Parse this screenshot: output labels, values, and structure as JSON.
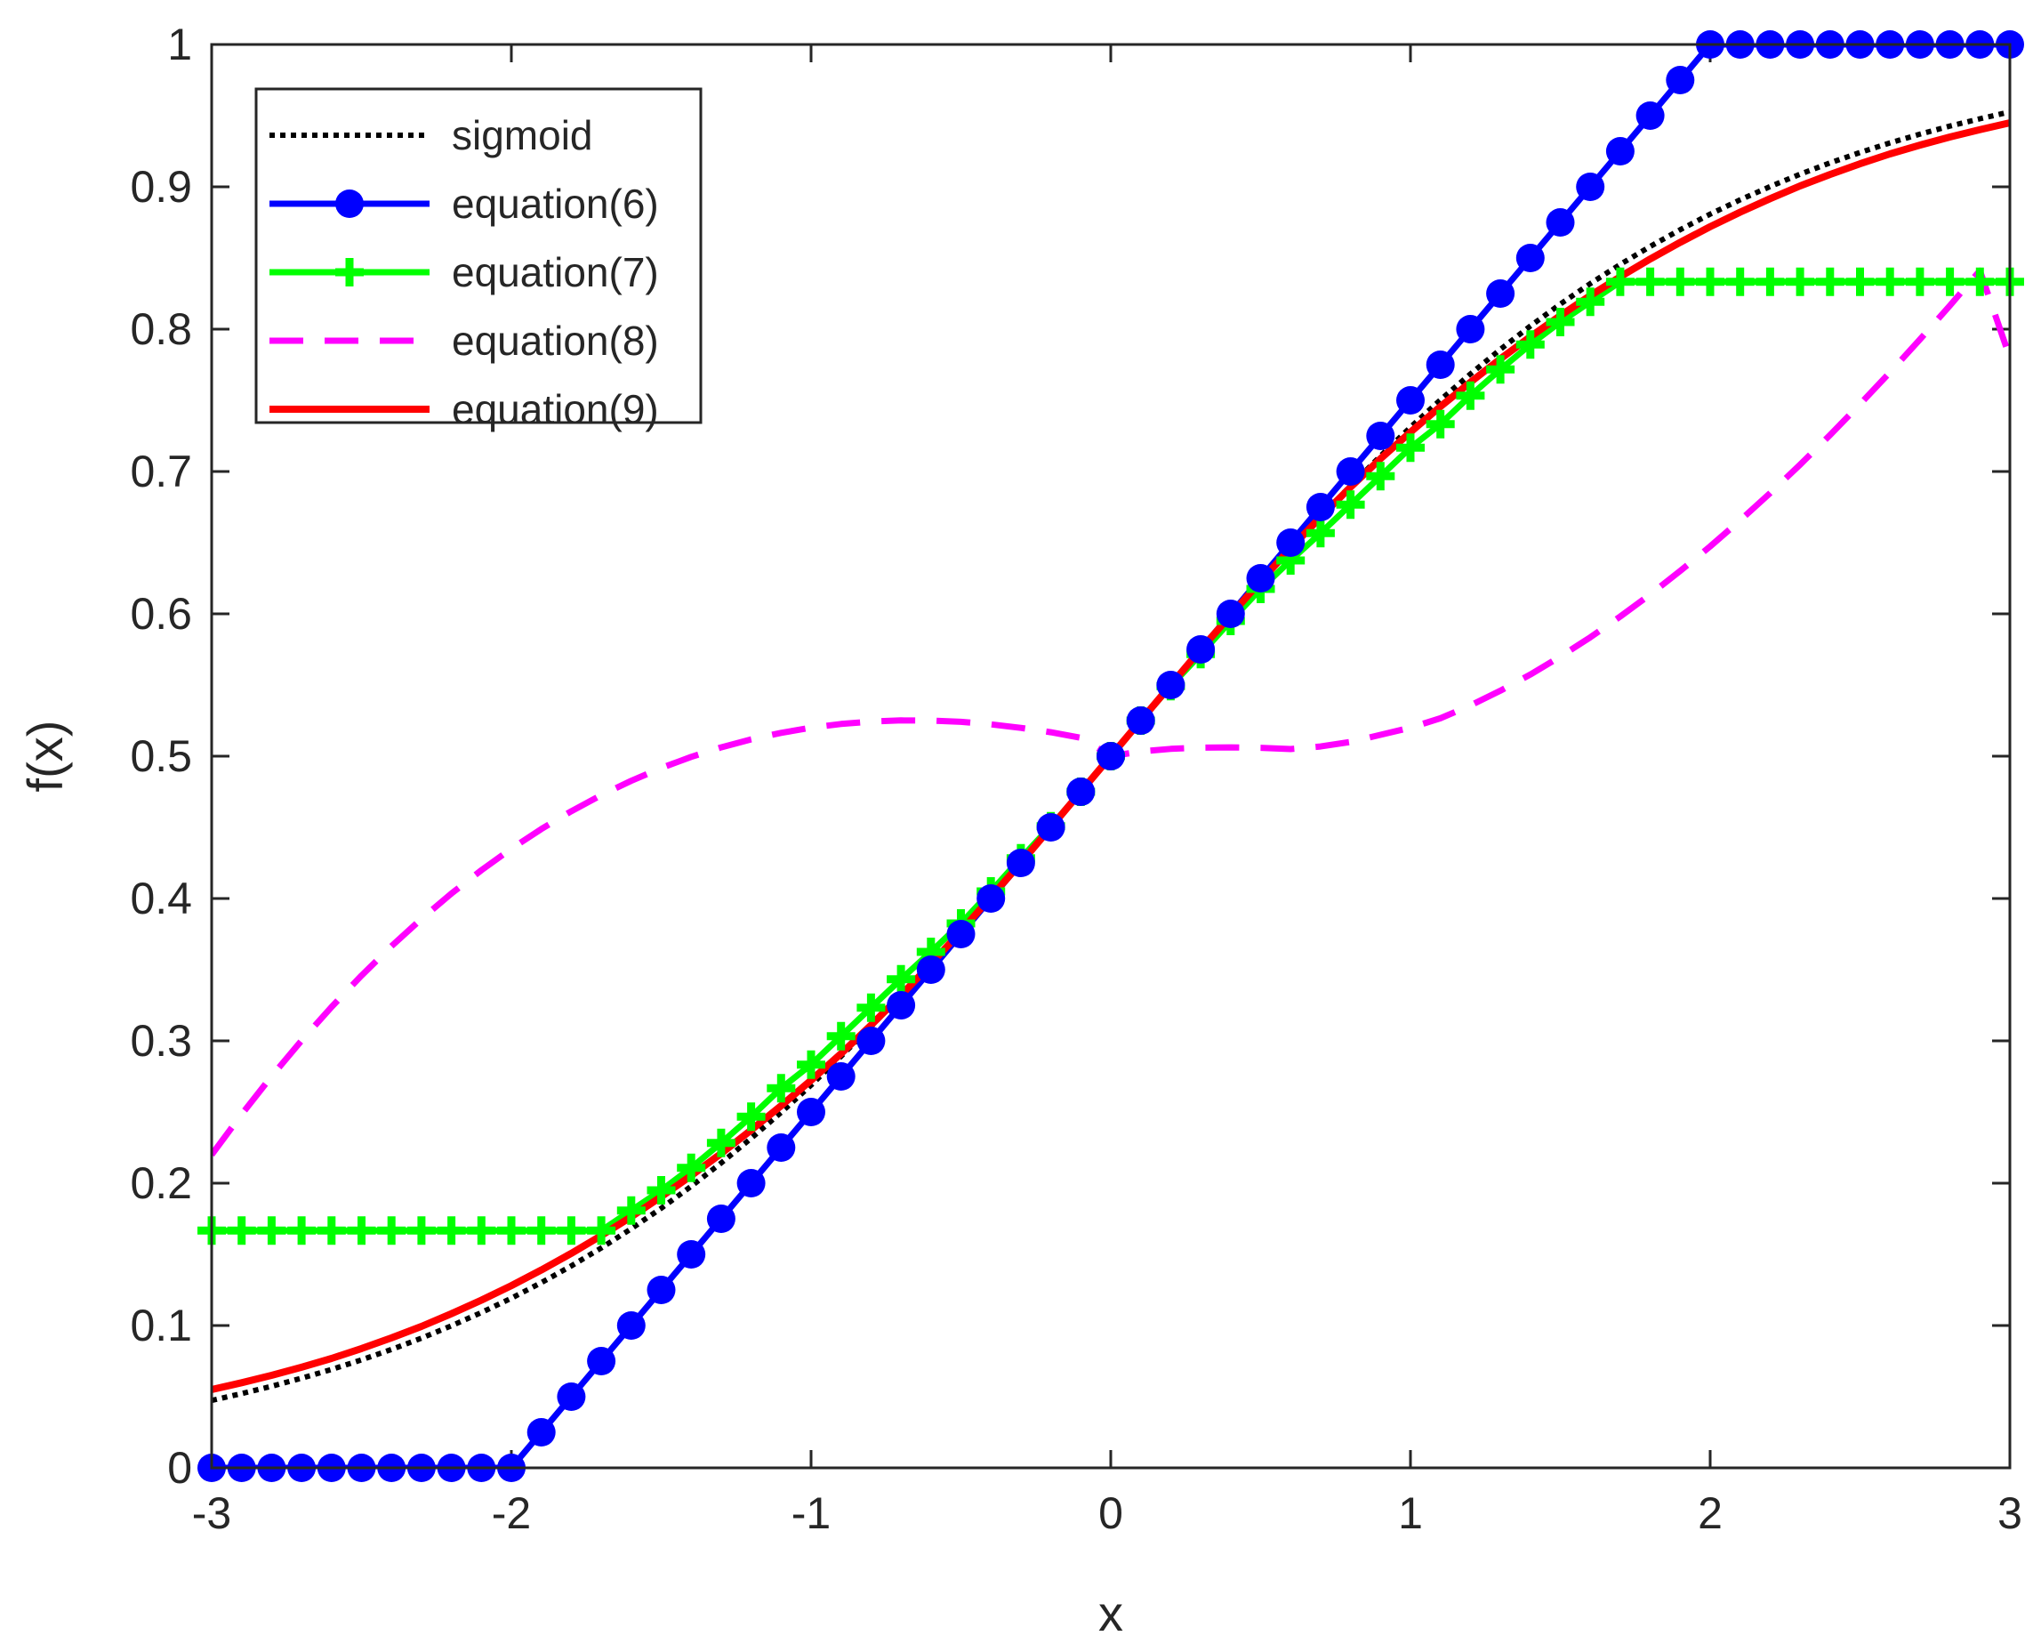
{
  "chart_data": {
    "type": "line",
    "title": "",
    "xlabel": "x",
    "ylabel": "f(x)",
    "xlim": [
      -3,
      3
    ],
    "ylim": [
      0,
      1
    ],
    "xticks": [
      -3,
      -2,
      -1,
      0,
      1,
      2,
      3
    ],
    "xtick_labels": [
      "-3",
      "-2",
      "-1",
      "0",
      "1",
      "2",
      "3"
    ],
    "yticks": [
      0,
      0.1,
      0.2,
      0.3,
      0.4,
      0.5,
      0.6,
      0.7,
      0.8,
      0.9,
      1
    ],
    "ytick_labels": [
      "0",
      "0.1",
      "0.2",
      "0.3",
      "0.4",
      "0.5",
      "0.6",
      "0.7",
      "0.8",
      "0.9",
      "1"
    ],
    "grid": false,
    "legend_position": "top-left",
    "x": [
      -3.0,
      -2.9,
      -2.8,
      -2.7,
      -2.6,
      -2.5,
      -2.4,
      -2.3,
      -2.2,
      -2.1,
      -2.0,
      -1.9,
      -1.8,
      -1.7,
      -1.6,
      -1.5,
      -1.4,
      -1.3,
      -1.2,
      -1.1,
      -1.0,
      -0.9,
      -0.8,
      -0.7,
      -0.6,
      -0.5,
      -0.4,
      -0.3,
      -0.2,
      -0.1,
      0.0,
      0.1,
      0.2,
      0.3,
      0.4,
      0.5,
      0.6,
      0.7,
      0.8,
      0.9,
      1.0,
      1.1,
      1.2,
      1.3,
      1.4,
      1.5,
      1.6,
      1.7,
      1.8,
      1.9,
      2.0,
      2.1,
      2.2,
      2.3,
      2.4,
      2.5,
      2.6,
      2.7,
      2.8,
      2.9,
      3.0
    ],
    "series": [
      {
        "name": "sigmoid",
        "color": "#000000",
        "style": "dotted",
        "marker": "none",
        "values": [
          0.0474,
          0.0522,
          0.0573,
          0.063,
          0.0691,
          0.0759,
          0.0832,
          0.0911,
          0.0998,
          0.1091,
          0.1192,
          0.1301,
          0.1419,
          0.1545,
          0.168,
          0.1824,
          0.1978,
          0.2142,
          0.2315,
          0.2497,
          0.2689,
          0.2891,
          0.31,
          0.3318,
          0.3543,
          0.3775,
          0.4013,
          0.4256,
          0.4502,
          0.475,
          0.5,
          0.525,
          0.5498,
          0.5744,
          0.5987,
          0.6225,
          0.6457,
          0.6682,
          0.69,
          0.7109,
          0.7311,
          0.7503,
          0.7685,
          0.7858,
          0.8022,
          0.8176,
          0.832,
          0.8455,
          0.8581,
          0.8699,
          0.8808,
          0.8909,
          0.9002,
          0.9089,
          0.9168,
          0.9241,
          0.9309,
          0.937,
          0.9427,
          0.9478,
          0.9526
        ]
      },
      {
        "name": "equation(6)",
        "color": "#0000ff",
        "style": "solid",
        "marker": "circle",
        "values": [
          0,
          0,
          0,
          0,
          0,
          0,
          0,
          0,
          0,
          0,
          0,
          0.025,
          0.05,
          0.075,
          0.1,
          0.125,
          0.15,
          0.175,
          0.2,
          0.225,
          0.25,
          0.275,
          0.3,
          0.325,
          0.35,
          0.375,
          0.4,
          0.425,
          0.45,
          0.475,
          0.5,
          0.525,
          0.55,
          0.575,
          0.6,
          0.625,
          0.65,
          0.675,
          0.7,
          0.725,
          0.75,
          0.775,
          0.8,
          0.825,
          0.85,
          0.875,
          0.9,
          0.925,
          0.95,
          0.975,
          1,
          1,
          1,
          1,
          1,
          1,
          1,
          1,
          1,
          1,
          1
        ]
      },
      {
        "name": "equation(7)",
        "color": "#00ff00",
        "style": "solid",
        "marker": "plus",
        "values": [
          0.1667,
          0.1667,
          0.1667,
          0.1667,
          0.1667,
          0.1667,
          0.1667,
          0.1667,
          0.1667,
          0.1667,
          0.1667,
          0.1667,
          0.1667,
          0.1667,
          0.1808,
          0.195,
          0.2108,
          0.2283,
          0.2467,
          0.2667,
          0.2833,
          0.3033,
          0.3233,
          0.3433,
          0.3625,
          0.3825,
          0.405,
          0.4283,
          0.4508,
          0.475,
          0.5,
          0.525,
          0.5492,
          0.5717,
          0.595,
          0.6175,
          0.6375,
          0.6567,
          0.6767,
          0.6967,
          0.7167,
          0.7333,
          0.7533,
          0.7717,
          0.7892,
          0.805,
          0.8192,
          0.8333,
          0.8333,
          0.8333,
          0.8333,
          0.8333,
          0.8333,
          0.8333,
          0.8333,
          0.8333,
          0.8333,
          0.8333,
          0.8333,
          0.8333,
          0.8333
        ]
      },
      {
        "name": "equation(8)",
        "color": "#ff00ff",
        "style": "dashed",
        "marker": "none",
        "values": [
          0.22,
          0.2484,
          0.2751,
          0.3002,
          0.3238,
          0.3459,
          0.3665,
          0.3857,
          0.4035,
          0.4199,
          0.435,
          0.4488,
          0.4613,
          0.4726,
          0.4827,
          0.4917,
          0.4995,
          0.5062,
          0.5118,
          0.5164,
          0.52,
          0.5226,
          0.5243,
          0.5251,
          0.525,
          0.5241,
          0.5224,
          0.5199,
          0.5168,
          0.5129,
          0.5,
          0.5033,
          0.5051,
          0.506,
          0.5062,
          0.5059,
          0.505,
          0.5068,
          0.51,
          0.515,
          0.52,
          0.5266,
          0.5356,
          0.546,
          0.5574,
          0.57,
          0.5835,
          0.5981,
          0.6136,
          0.6301,
          0.6474,
          0.6657,
          0.6848,
          0.7048,
          0.7256,
          0.7473,
          0.7697,
          0.7928,
          0.8166,
          0.8411,
          0.78
        ]
      },
      {
        "name": "equation(9)",
        "color": "#ff0000",
        "style": "solid",
        "marker": "none",
        "values": [
          0.055,
          0.0598,
          0.065,
          0.0707,
          0.0769,
          0.0838,
          0.0913,
          0.0994,
          0.1083,
          0.1178,
          0.128,
          0.139,
          0.1507,
          0.1632,
          0.1764,
          0.1905,
          0.2053,
          0.2209,
          0.2373,
          0.2544,
          0.2723,
          0.291,
          0.311,
          0.332,
          0.354,
          0.377,
          0.401,
          0.425,
          0.45,
          0.475,
          0.5,
          0.525,
          0.55,
          0.575,
          0.599,
          0.623,
          0.646,
          0.668,
          0.689,
          0.709,
          0.7277,
          0.7456,
          0.7627,
          0.7791,
          0.7947,
          0.8095,
          0.8236,
          0.8368,
          0.8493,
          0.861,
          0.872,
          0.8822,
          0.8917,
          0.9006,
          0.9087,
          0.9162,
          0.9231,
          0.9293,
          0.935,
          0.9402,
          0.945
        ]
      }
    ]
  }
}
